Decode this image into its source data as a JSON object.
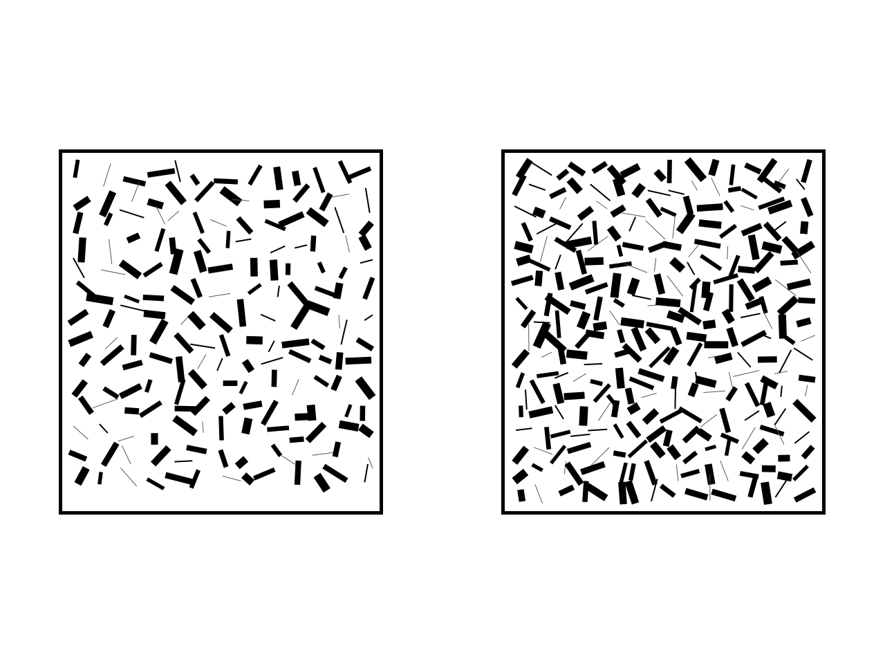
{
  "stimuli": {
    "left": {
      "figure": "texture-panel",
      "element": "oriented-line-segment",
      "relative_density": "lower"
    },
    "right": {
      "figure": "texture-panel",
      "element": "oriented-line-segment",
      "relative_density": "higher"
    }
  },
  "colors": {
    "background": "#ffffff",
    "ink": "#000000",
    "thin_line": "#555555"
  }
}
